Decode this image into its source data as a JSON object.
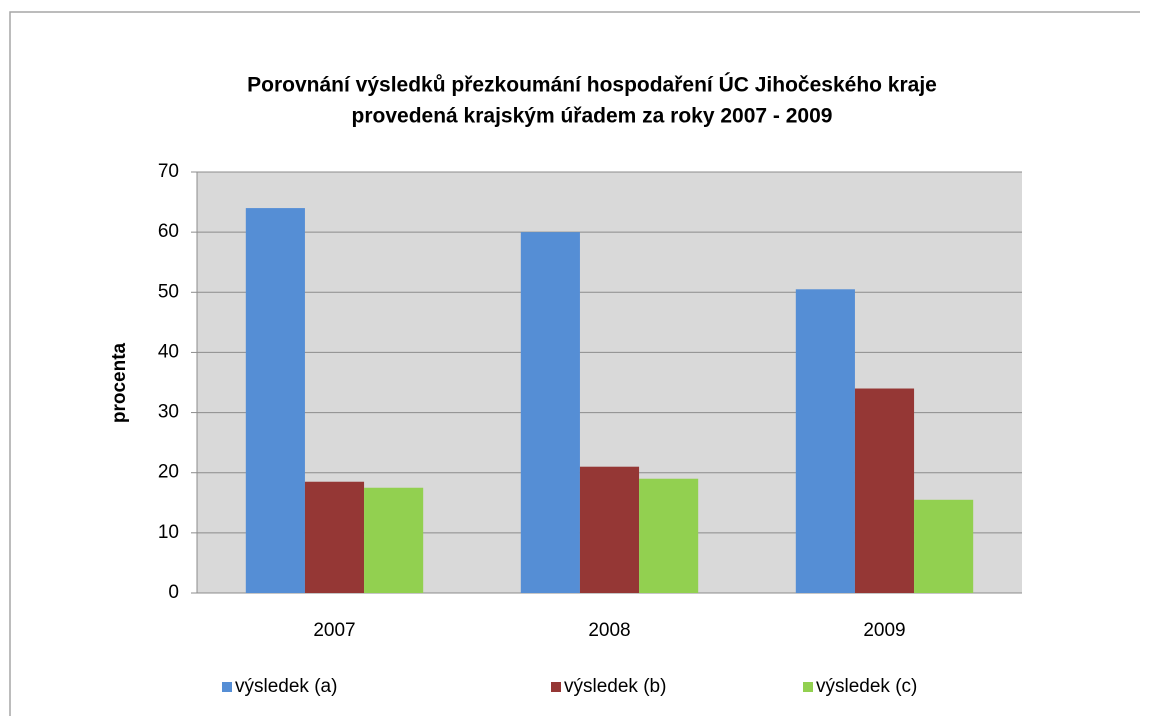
{
  "chart_data": {
    "type": "bar",
    "title": [
      "Porovnání výsledků přezkoumání hospodaření ÚC Jihočeského kraje",
      "provedená krajským úřadem za roky 2007 - 2009"
    ],
    "ylabel": "procenta",
    "categories": [
      "2007",
      "2008",
      "2009"
    ],
    "series": [
      {
        "name": "výsledek (a)",
        "color": "#558ed5",
        "values": [
          64,
          60,
          50.5
        ]
      },
      {
        "name": "výsledek (b)",
        "color": "#953735",
        "values": [
          18.5,
          21,
          34
        ]
      },
      {
        "name": "výsledek (c)",
        "color": "#92d050",
        "values": [
          17.5,
          19,
          15.5
        ]
      }
    ],
    "ylim": [
      0,
      70
    ],
    "yticks": [
      0,
      10,
      20,
      30,
      40,
      50,
      60,
      70
    ],
    "grid": true,
    "legend": "bottom"
  }
}
